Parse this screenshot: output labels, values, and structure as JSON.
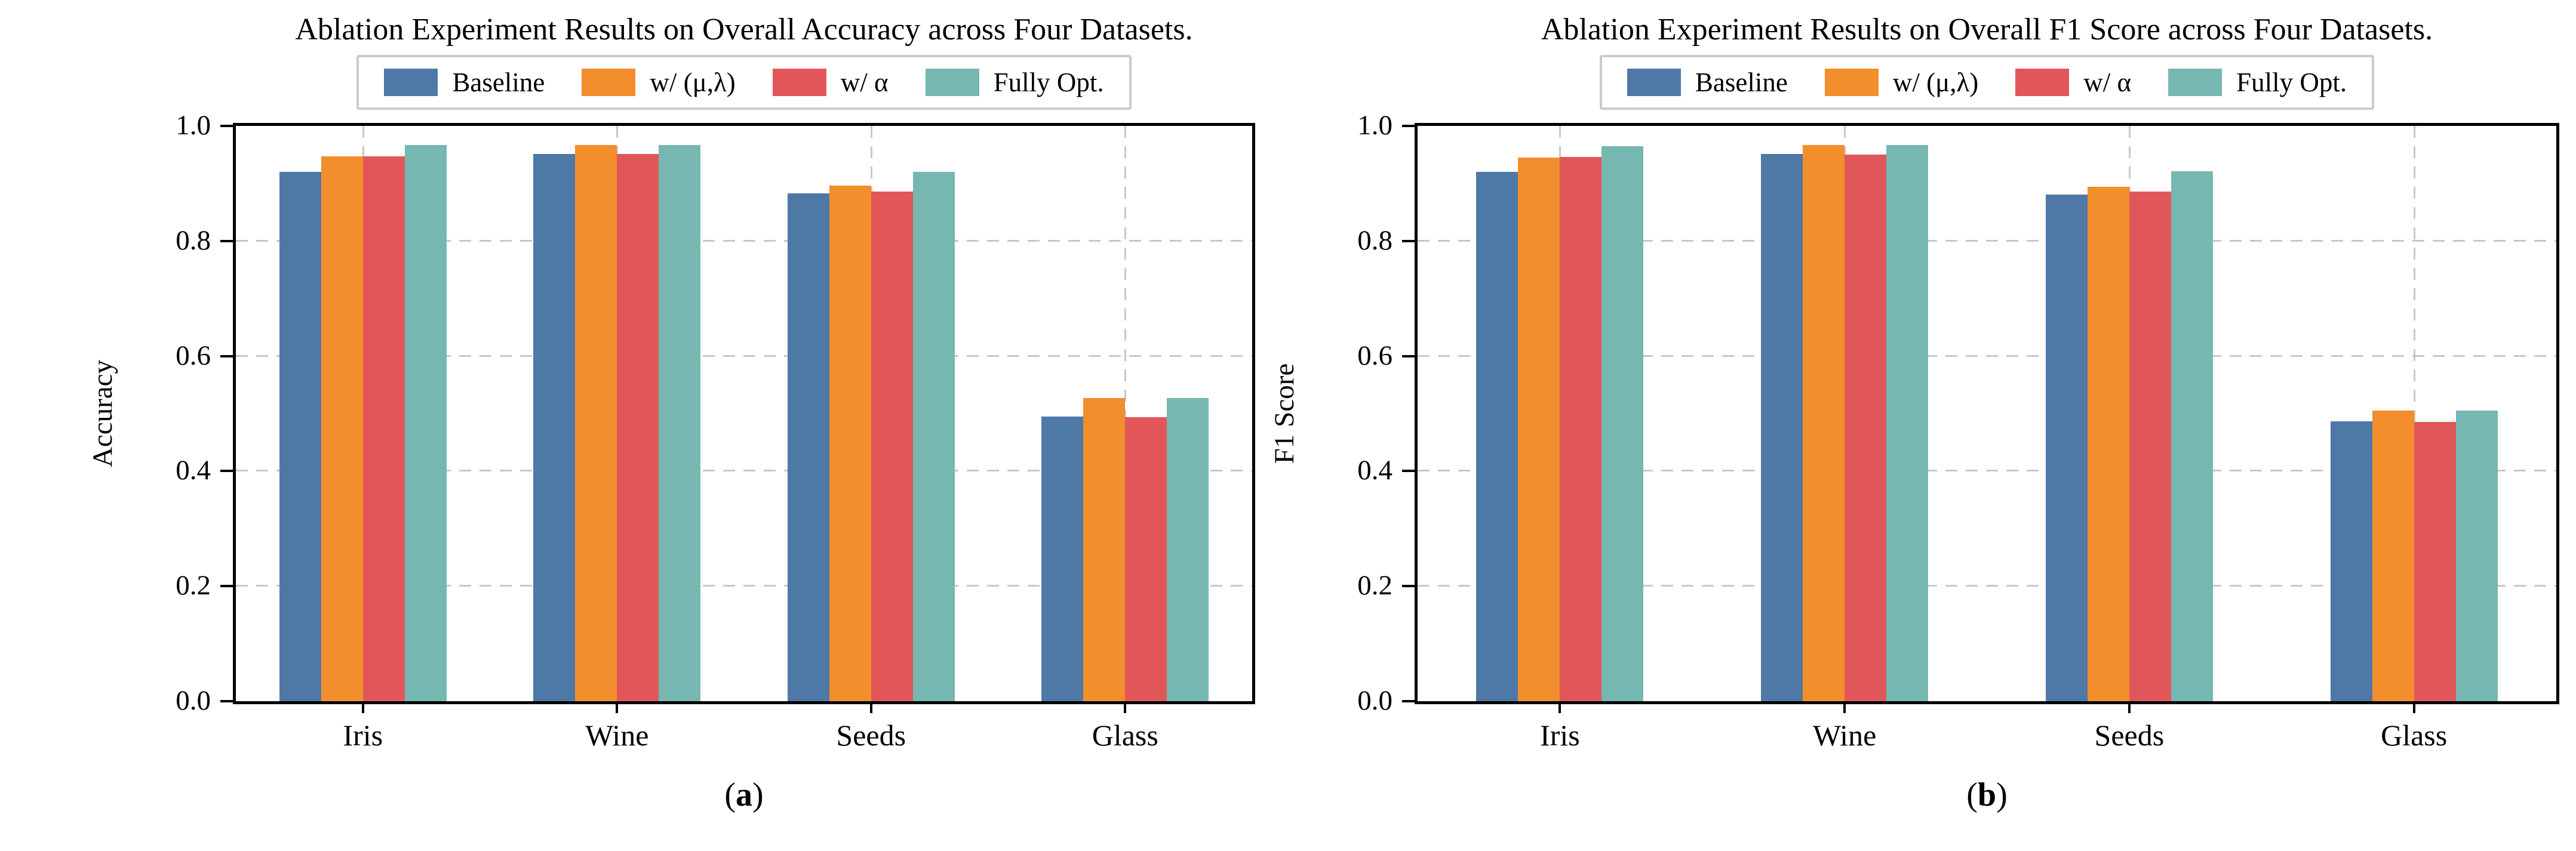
{
  "figure": {
    "captions": [
      "a",
      "b"
    ],
    "style": {
      "axis_color": "#000000",
      "grid_color": "#c8c8c8",
      "legend_border_color": "#cbcbcb",
      "background": "#ffffff"
    }
  },
  "chart_data": [
    {
      "type": "bar",
      "title": "Ablation Experiment Results on Overall Accuracy across Four Datasets.",
      "ylabel": "Accuracy",
      "xlabel": "",
      "categories": [
        "Iris",
        "Wine",
        "Seeds",
        "Glass"
      ],
      "series": [
        {
          "name": "Baseline",
          "color": "#4E79A7",
          "values": [
            0.92,
            0.951,
            0.883,
            0.495
          ]
        },
        {
          "name": "w/ (μ,λ)",
          "color": "#F28E2B",
          "values": [
            0.947,
            0.967,
            0.896,
            0.527
          ]
        },
        {
          "name": "w/ α",
          "color": "#E15759",
          "values": [
            0.947,
            0.951,
            0.886,
            0.494
          ]
        },
        {
          "name": "Fully Opt.",
          "color": "#76B7B2",
          "values": [
            0.967,
            0.967,
            0.92,
            0.527
          ]
        }
      ],
      "ylim": [
        0.0,
        1.0
      ],
      "yticks": [
        "0.0",
        "0.2",
        "0.4",
        "0.6",
        "0.8",
        "1.0"
      ],
      "grid": "dashed gray, horizontal at y ticks and vertical at category centers",
      "legend_position": "top center above plot"
    },
    {
      "type": "bar",
      "title": "Ablation Experiment Results on Overall F1 Score across Four Datasets.",
      "ylabel": "F1 Score",
      "xlabel": "",
      "categories": [
        "Iris",
        "Wine",
        "Seeds",
        "Glass"
      ],
      "series": [
        {
          "name": "Baseline",
          "color": "#4E79A7",
          "values": [
            0.92,
            0.951,
            0.881,
            0.487
          ]
        },
        {
          "name": "w/ (μ,λ)",
          "color": "#F28E2B",
          "values": [
            0.945,
            0.967,
            0.894,
            0.505
          ]
        },
        {
          "name": "w/ α",
          "color": "#E15759",
          "values": [
            0.946,
            0.95,
            0.886,
            0.486
          ]
        },
        {
          "name": "Fully Opt.",
          "color": "#76B7B2",
          "values": [
            0.965,
            0.967,
            0.921,
            0.505
          ]
        }
      ],
      "ylim": [
        0.0,
        1.0
      ],
      "yticks": [
        "0.0",
        "0.2",
        "0.4",
        "0.6",
        "0.8",
        "1.0"
      ],
      "grid": "dashed gray, horizontal at y ticks and vertical at category centers",
      "legend_position": "top center above plot"
    }
  ]
}
